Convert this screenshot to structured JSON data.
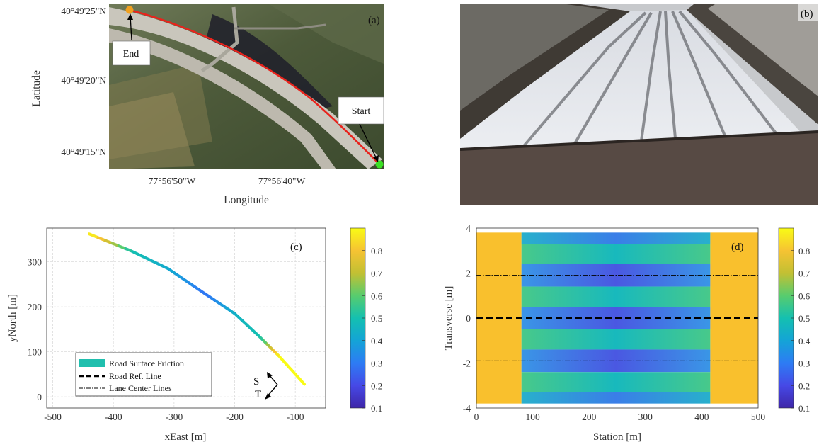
{
  "panel_a": {
    "tag": "(a)",
    "xlabel": "Longitude",
    "ylabel": "Latitude",
    "lat_ticks": [
      "40°49'25\"N",
      "40°49'20\"N",
      "40°49'15\"N"
    ],
    "lon_ticks": [
      "77°56'50\"W",
      "77°56'40\"W"
    ],
    "end_label": "End",
    "start_label": "Start",
    "colors": {
      "route": "#e8231c",
      "end_marker": "#f0a020",
      "start_marker": "#3be024"
    }
  },
  "panel_b": {
    "tag": "(b)"
  },
  "panel_c": {
    "tag": "(c)",
    "S_label": "S",
    "T_label": "T"
  },
  "panel_d": {
    "tag": "(d)"
  },
  "colorbar_ticks": [
    "0.8",
    "0.7",
    "0.6",
    "0.5",
    "0.4",
    "0.3",
    "0.2",
    "0.1"
  ],
  "chart_data": [
    {
      "type": "line",
      "panel": "c",
      "xlabel": "xEast [m]",
      "ylabel": "yNorth [m]",
      "xlim": [
        -510,
        -50
      ],
      "ylim": [
        -25,
        375
      ],
      "xticks": [
        -500,
        -400,
        -300,
        -200,
        -100
      ],
      "yticks": [
        0,
        100,
        200,
        300
      ],
      "grid": true,
      "legend": [
        "Road Surface Friction",
        "Road Ref. Line",
        "Lane Center Lines"
      ],
      "legend_placement": "bottom-left",
      "path": [
        [
          -85,
          28
        ],
        [
          -128,
          92
        ],
        [
          -160,
          135
        ],
        [
          -200,
          185
        ],
        [
          -250,
          230
        ],
        [
          -310,
          285
        ],
        [
          -372,
          325
        ],
        [
          -440,
          362
        ]
      ],
      "friction": [
        0.9,
        0.9,
        0.5,
        0.45,
        0.28,
        0.42,
        0.5,
        0.9
      ]
    },
    {
      "type": "heatmap",
      "panel": "d",
      "xlabel": "Station [m]",
      "ylabel": "Transverse [m]",
      "xlim": [
        0,
        500
      ],
      "ylim": [
        -4,
        4
      ],
      "xticks": [
        0,
        100,
        200,
        300,
        400,
        500
      ],
      "yticks": [
        -4,
        -2,
        0,
        2,
        4
      ],
      "low_friction_station_range": [
        80,
        415
      ],
      "lane_center_lines": [
        1.9,
        -1.9
      ],
      "ref_line": 0
    },
    {
      "type": "colorbar",
      "range": [
        0.1,
        0.9
      ],
      "colormap": "parula"
    }
  ]
}
